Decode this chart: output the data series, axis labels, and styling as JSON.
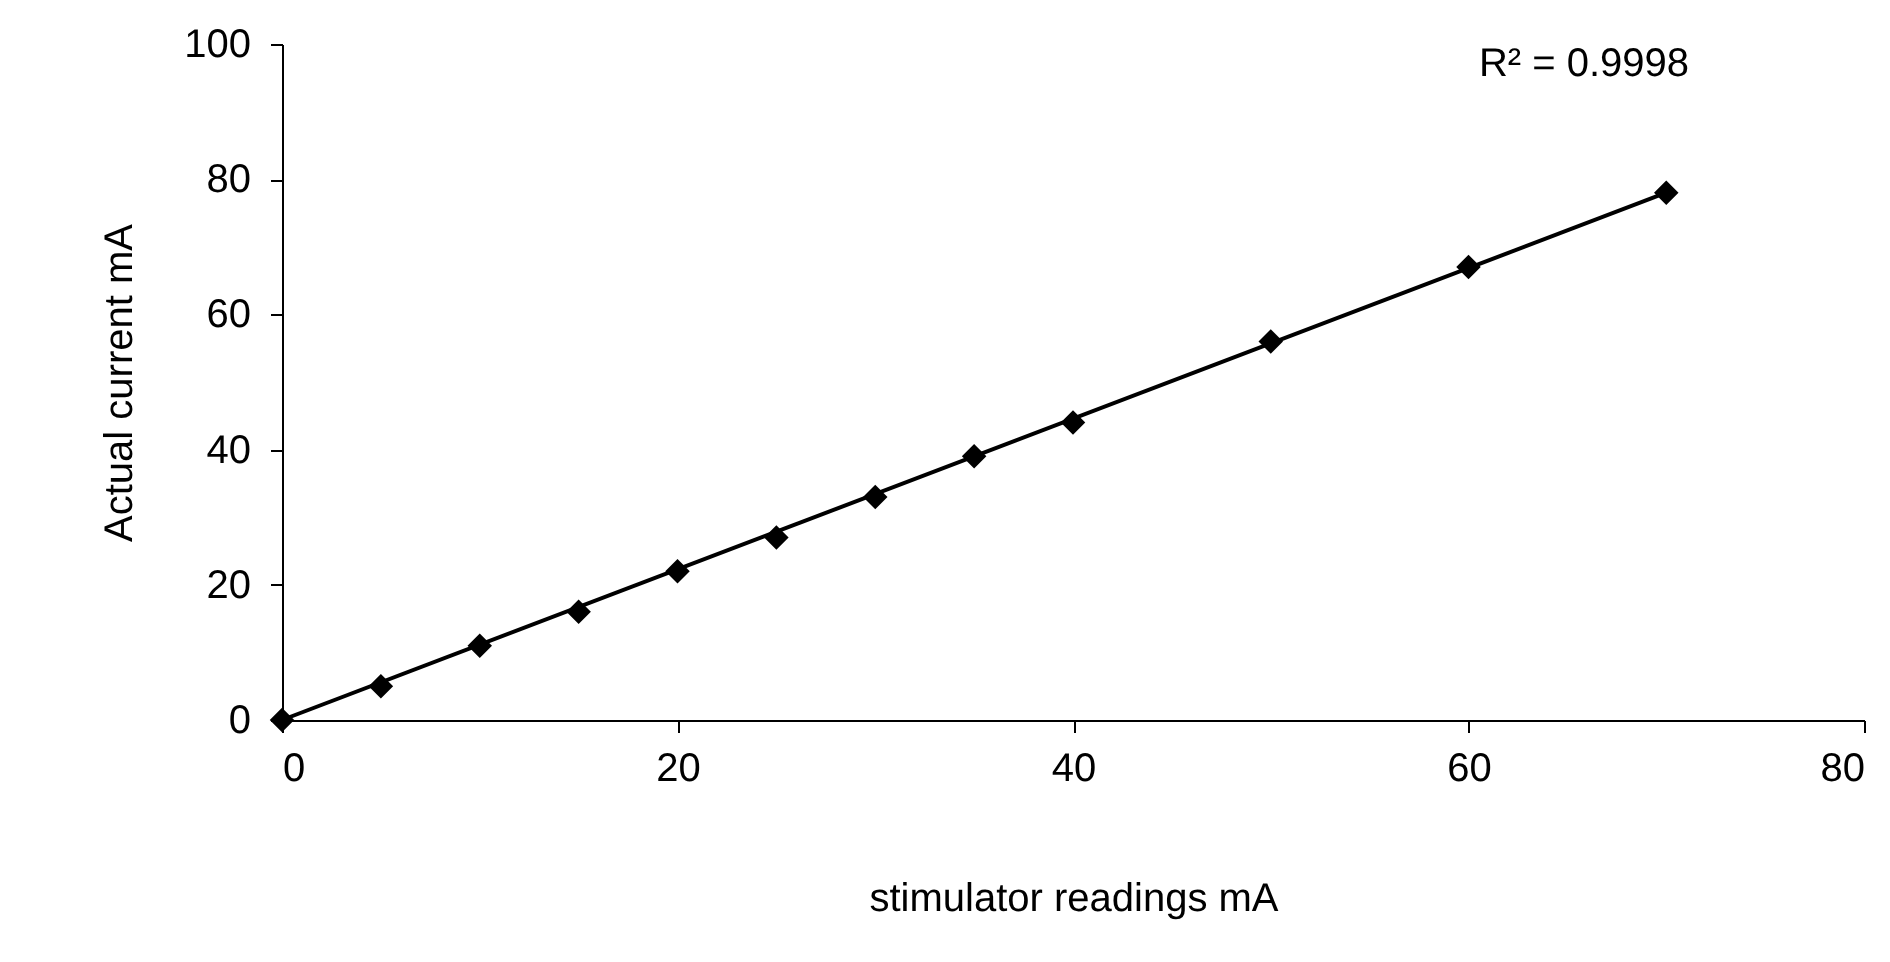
{
  "chart_data": {
    "type": "scatter",
    "xlabel": "stimulator readings mA",
    "ylabel": "Actual current mA",
    "xlim": [
      0,
      80
    ],
    "ylim": [
      0,
      100
    ],
    "xticks": [
      0,
      20,
      40,
      60,
      80
    ],
    "yticks": [
      0,
      20,
      40,
      60,
      80,
      100
    ],
    "grid": false,
    "annotations": [
      "R² = 0.9998"
    ],
    "series": [
      {
        "color": "#000000",
        "marker": "diamond",
        "x": [
          0,
          5,
          10,
          15,
          20,
          25,
          30,
          35,
          40,
          50,
          60,
          70
        ],
        "values": [
          0,
          5,
          11,
          16,
          22,
          27,
          33,
          39,
          44,
          56,
          67,
          78
        ]
      },
      {
        "type": "line",
        "color": "#000000",
        "marker": "none",
        "x": [
          0,
          70
        ],
        "values": [
          0,
          78
        ]
      }
    ]
  }
}
